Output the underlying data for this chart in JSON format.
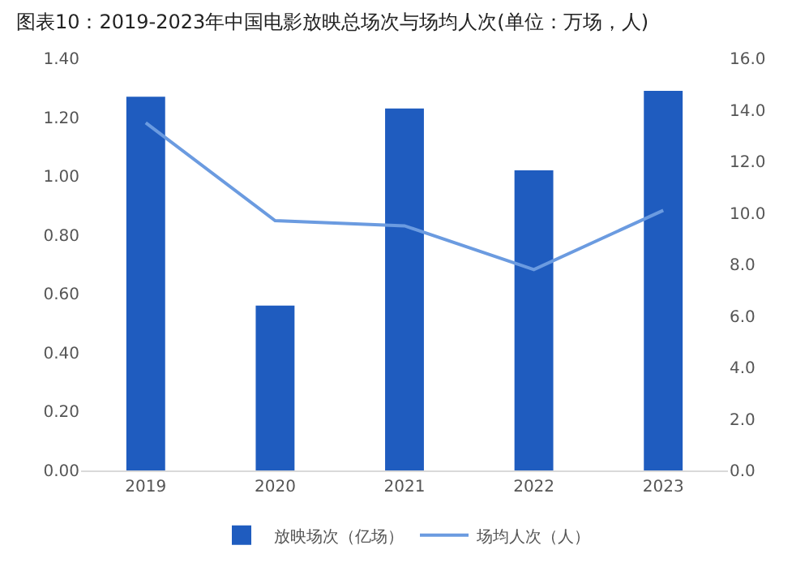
{
  "chart_data": {
    "type": "bar",
    "title": "图表10：2019-2023年中国电影放映总场次与场均人次(单位：万场，人)",
    "categories": [
      "2019",
      "2020",
      "2021",
      "2022",
      "2023"
    ],
    "series": [
      {
        "name": "放映场次（亿场）",
        "color": "#1f5cbf",
        "values": [
          1.27,
          0.56,
          1.23,
          1.02,
          1.29
        ]
      },
      {
        "name": "场均人次（人）",
        "type": "line",
        "axis": "y2",
        "color": "#6b9be0",
        "values": [
          13.5,
          9.7,
          9.5,
          7.8,
          10.1
        ]
      }
    ],
    "ylim": [
      0,
      1.4
    ],
    "yticks": [
      {
        "value": 0,
        "label": "0.00"
      },
      {
        "value": 0.2,
        "label": "0.20"
      },
      {
        "value": 0.4,
        "label": "0.40"
      },
      {
        "value": 0.6,
        "label": "0.60"
      },
      {
        "value": 0.8,
        "label": "0.80"
      },
      {
        "value": 1,
        "label": "1.00"
      },
      {
        "value": 1.2,
        "label": "1.20"
      },
      {
        "value": 1.4,
        "label": "1.40"
      }
    ],
    "y2lim": [
      0,
      16
    ],
    "y2ticks": [
      {
        "value": 0,
        "label": "0.0"
      },
      {
        "value": 2,
        "label": "2.0"
      },
      {
        "value": 4,
        "label": "4.0"
      },
      {
        "value": 6,
        "label": "6.0"
      },
      {
        "value": 8,
        "label": "8.0"
      },
      {
        "value": 10,
        "label": "10.0"
      },
      {
        "value": 12,
        "label": "12.0"
      },
      {
        "value": 14,
        "label": "14.0"
      },
      {
        "value": 16,
        "label": "16.0"
      }
    ],
    "grid": false,
    "legend": "bottom",
    "marker": "none",
    "line_style": "solid"
  }
}
